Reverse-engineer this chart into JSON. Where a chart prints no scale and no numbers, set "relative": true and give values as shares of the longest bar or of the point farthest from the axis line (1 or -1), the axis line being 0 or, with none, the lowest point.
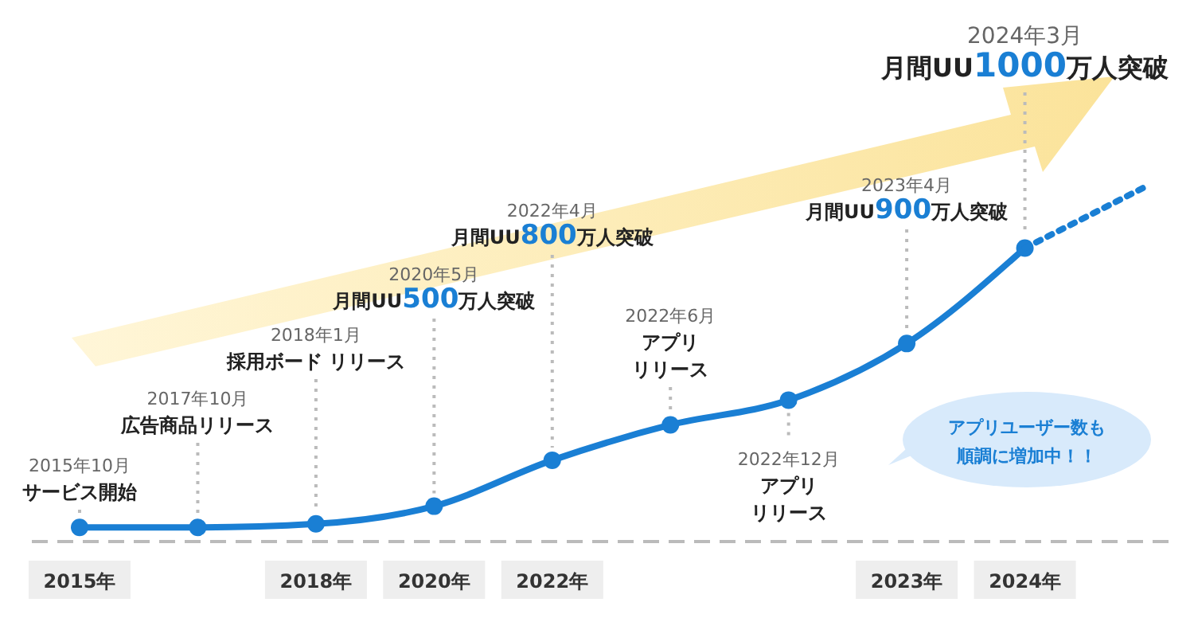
{
  "chart_data": {
    "type": "line",
    "relative": true,
    "categories": [
      "2015年",
      null,
      "2018年",
      "2020年",
      "2022年",
      null,
      null,
      "2023年",
      "2024年",
      null
    ],
    "series": [
      {
        "color": "#1a7fd4",
        "values": [
          0.04,
          0.04,
          0.05,
          0.1,
          0.23,
          0.33,
          0.4,
          0.56,
          0.83,
          null
        ],
        "marker": "circle",
        "line_style": "solid"
      },
      {
        "color": "#1a7fd4",
        "values": [
          null,
          null,
          null,
          null,
          null,
          null,
          null,
          null,
          0.83,
          1
        ],
        "line_style": "dotted"
      }
    ],
    "annotations": [
      "2015年10月",
      "サービス開始",
      "2017年10月",
      "広告商品リリース",
      "2018年1月",
      "採用ボード リリース",
      "2020年5月",
      "月間UU500万人突破",
      "2022年4月",
      "月間UU800万人突破",
      "2022年6月",
      "アプリ",
      "リリース",
      "2022年12月",
      "アプリ",
      "リリース",
      "2023年4月",
      "月間UU900万人突破",
      "2024年3月",
      "月間UU1000万人突破",
      "アプリユーザー数も",
      "順調に増加中！！"
    ]
  }
}
